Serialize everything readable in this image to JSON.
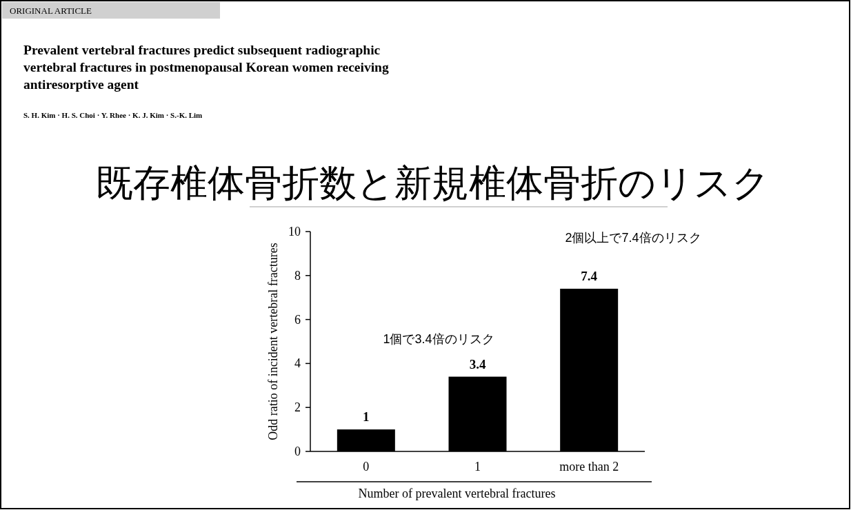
{
  "chart_data": {
    "type": "bar",
    "title": "既存椎体骨折数と新規椎体骨折のリスク",
    "subtitle": "Prevalent vertebral fractures predict subsequent radiographic vertebral fractures in postmenopausal Korean women receiving antiresorptive agent",
    "annotations": [
      "ORIGINAL ARTICLE",
      "S. H. Kim · H. S. Choi · Y. Rhee · K. J. Kim · S.-K. Lim",
      "1個で3.4倍のリスク",
      "2個以上で7.4倍のリスク"
    ],
    "categories": [
      "0",
      "1",
      "more than 2"
    ],
    "values": [
      1,
      3.4,
      7.4
    ],
    "color": "#000000",
    "data_labels": true,
    "xlabel": "Number of prevalent vertebral fractures",
    "ylabel": "Odd ratio of incident vertebral fractures",
    "ylim": [
      0,
      10
    ],
    "yticks": [
      0,
      2,
      4,
      6,
      8,
      10
    ],
    "grid": false
  }
}
